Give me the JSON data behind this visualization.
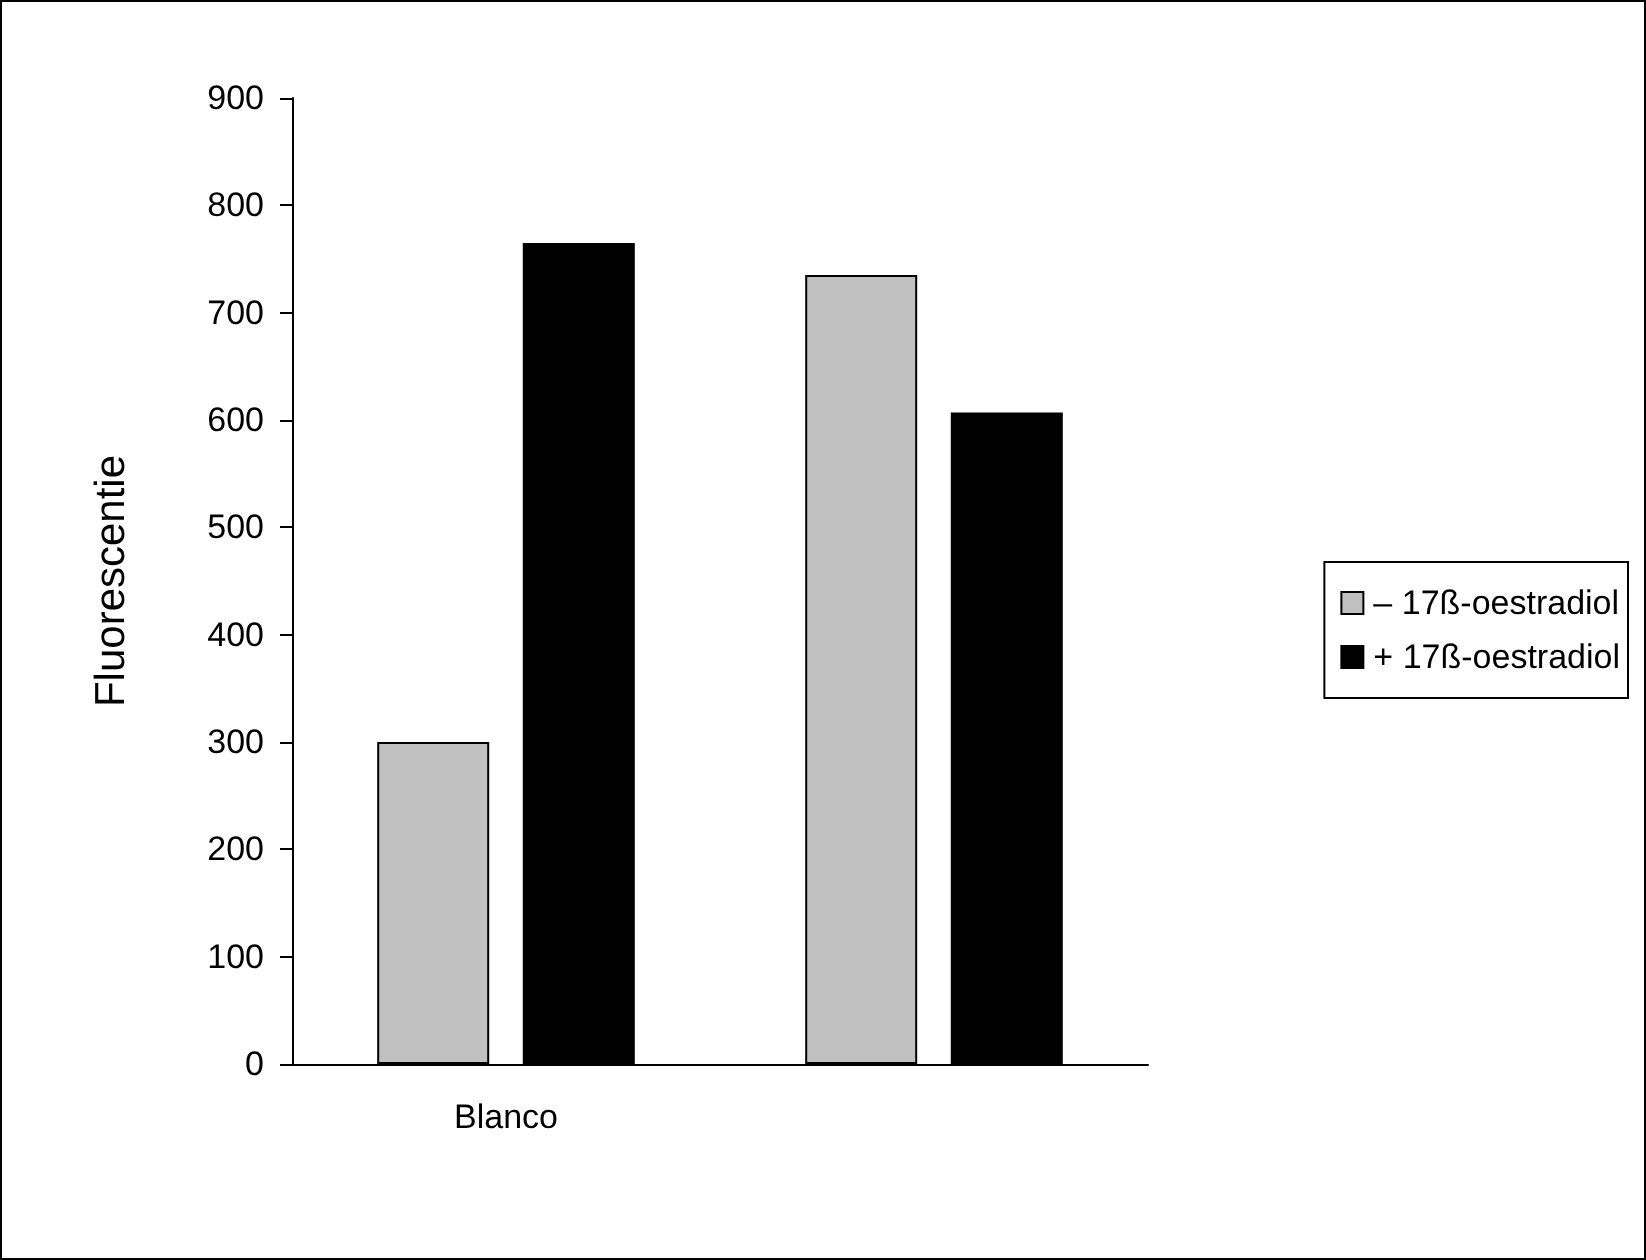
{
  "chart_data": {
    "type": "bar",
    "ylabel": "Fluorescentie",
    "categories": [
      "Blanco",
      null
    ],
    "series": [
      {
        "name": "– 17ß-oestradiol",
        "color": "#c0c0c0",
        "values": [
          300,
          735
        ]
      },
      {
        "name": "+ 17ß-oestradiol",
        "color": "#000000",
        "values": [
          765,
          607
        ]
      }
    ],
    "ylim": [
      0,
      900
    ],
    "yticks": [
      0,
      100,
      200,
      300,
      400,
      500,
      600,
      700,
      800,
      900
    ],
    "grid": false,
    "legend": "right"
  }
}
